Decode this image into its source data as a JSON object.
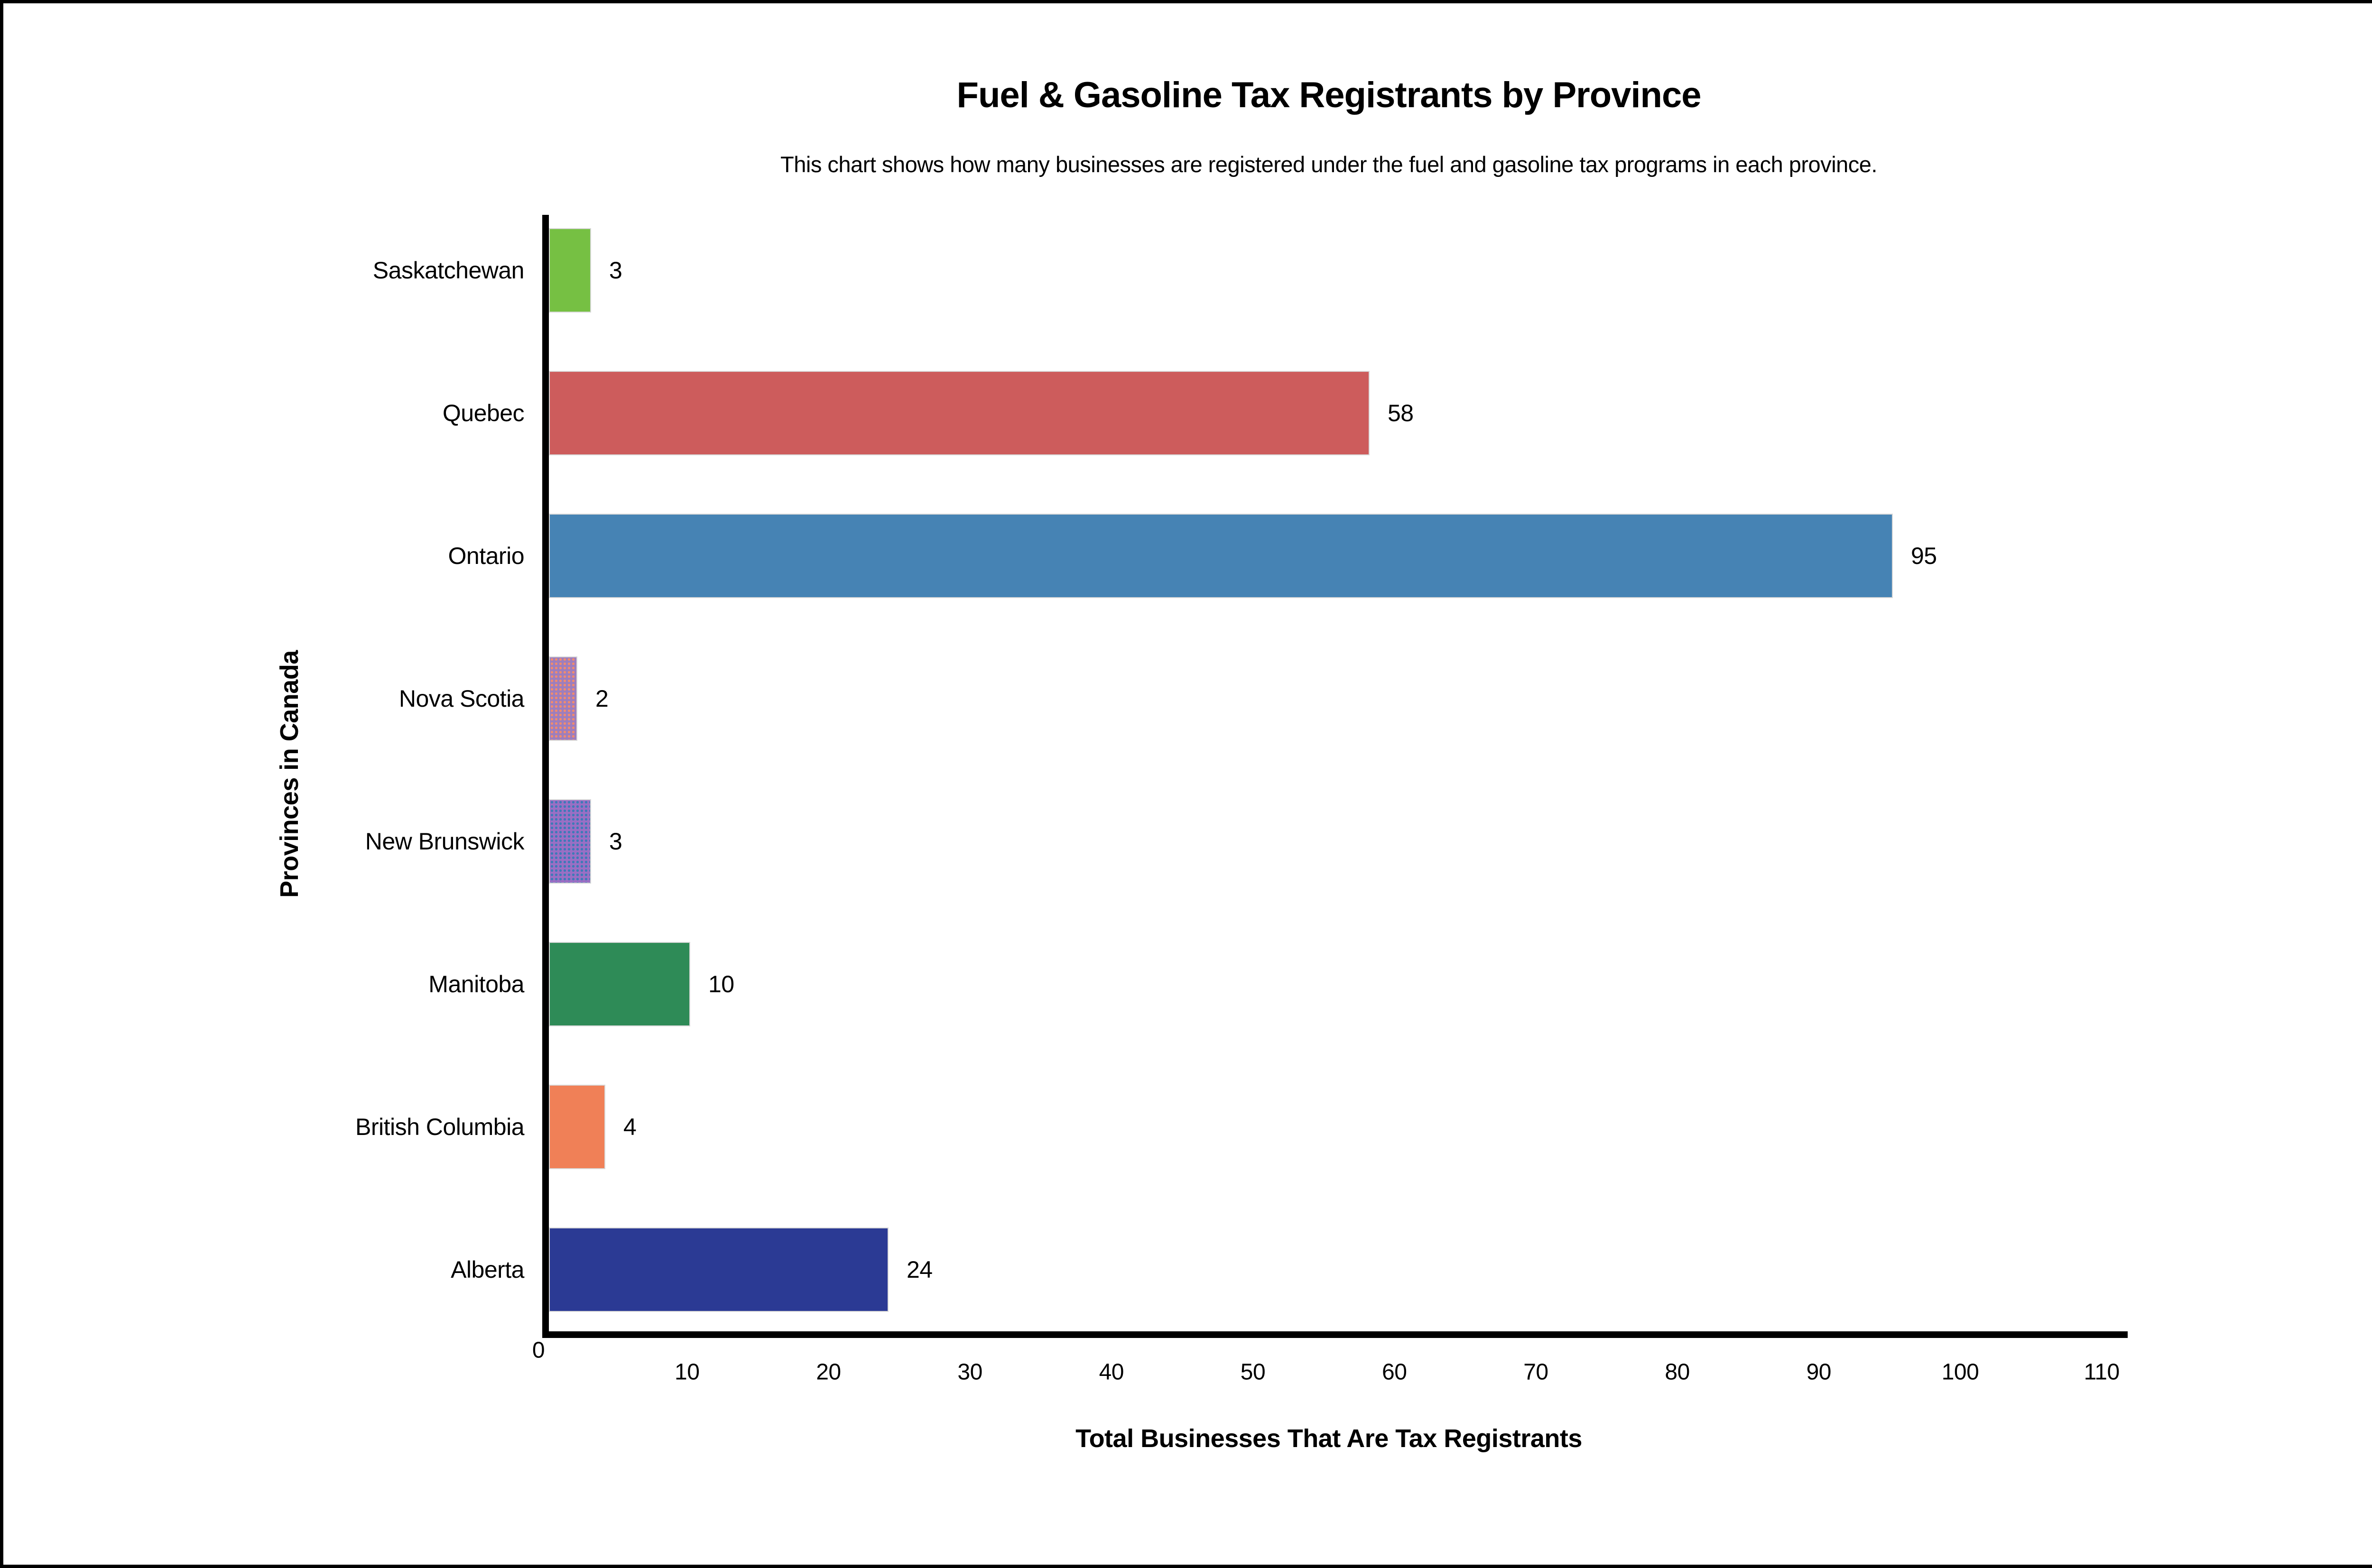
{
  "chart_data": {
    "type": "bar",
    "orientation": "horizontal",
    "title": "Fuel & Gasoline Tax Registrants by Province",
    "subtitle": "This chart shows how many businesses are registered under the fuel and gasoline tax programs in each province.",
    "xlabel": "Total Businesses That Are Tax Registrants",
    "ylabel": "Provinces in Canada",
    "categories": [
      "Saskatchewan",
      "Quebec",
      "Ontario",
      "Nova Scotia",
      "New Brunswick",
      "Manitoba",
      "British Columbia",
      "Alberta"
    ],
    "values": [
      3,
      58,
      95,
      2,
      3,
      10,
      4,
      24
    ],
    "bar_colors": [
      "#76C043",
      "#CD5C5C",
      "#4683B4",
      "#9D7EBD",
      "#9A6FC4",
      "#2E8B57",
      "#F08057",
      "#2B3A94"
    ],
    "bar_textures": [
      "solid",
      "solid",
      "solid",
      "dither-warm",
      "dither-cool",
      "solid",
      "solid",
      "solid"
    ],
    "xlim": [
      0,
      110
    ],
    "xticks": [
      0,
      10,
      20,
      30,
      40,
      50,
      60,
      70,
      80,
      90,
      100,
      110
    ],
    "grid": false,
    "legend": null,
    "background_color": "#ffffff",
    "border_color": "#000000",
    "axis_color": "#000000"
  }
}
